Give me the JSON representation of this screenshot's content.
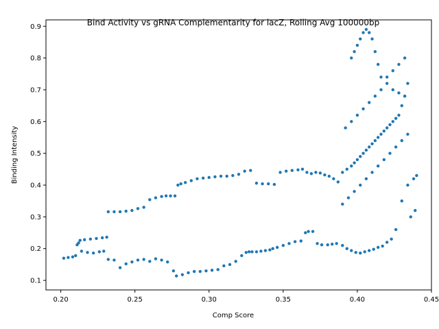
{
  "chart_data": {
    "type": "scatter",
    "title": "Bind Activity vs gRNA Complementarity for lacZ, Rolling Avg 100000bp",
    "xlabel": "Comp Score",
    "ylabel": "Binding Intensity",
    "xlim": [
      0.19,
      0.45
    ],
    "ylim": [
      0.07,
      0.92
    ],
    "xticks": [
      0.2,
      0.25,
      0.3,
      0.35,
      0.4,
      0.45
    ],
    "xtick_labels": [
      "0.20",
      "0.25",
      "0.30",
      "0.35",
      "0.40",
      "0.45"
    ],
    "yticks": [
      0.1,
      0.2,
      0.3,
      0.4,
      0.5,
      0.6,
      0.7,
      0.8,
      0.9
    ],
    "ytick_labels": [
      "0.1",
      "0.2",
      "0.3",
      "0.4",
      "0.5",
      "0.6",
      "0.7",
      "0.8",
      "0.9"
    ],
    "grid": false,
    "color": "#1f77b4",
    "series": [
      {
        "x": [
          0.202,
          0.205,
          0.208,
          0.21,
          0.211,
          0.212,
          0.213,
          0.216,
          0.22,
          0.224,
          0.228,
          0.231,
          0.214,
          0.218,
          0.222,
          0.226,
          0.229,
          0.232,
          0.236,
          0.24,
          0.244,
          0.248,
          0.252,
          0.256,
          0.26,
          0.264,
          0.268,
          0.272,
          0.276,
          0.278,
          0.282,
          0.286,
          0.29,
          0.294,
          0.298,
          0.302,
          0.306,
          0.31,
          0.314,
          0.318,
          0.322,
          0.325,
          0.327,
          0.329,
          0.332,
          0.335,
          0.338,
          0.341,
          0.343,
          0.346,
          0.35,
          0.354,
          0.358,
          0.362,
          0.365,
          0.367,
          0.37,
          0.373,
          0.376,
          0.38,
          0.383,
          0.386,
          0.39,
          0.393,
          0.396,
          0.399,
          0.402,
          0.405,
          0.408,
          0.411,
          0.414,
          0.417,
          0.42,
          0.423,
          0.426,
          0.43,
          0.434,
          0.438,
          0.44,
          0.232,
          0.236,
          0.24,
          0.244,
          0.248,
          0.252,
          0.256,
          0.26,
          0.264,
          0.268,
          0.271,
          0.274,
          0.277,
          0.279,
          0.281,
          0.284,
          0.288,
          0.292,
          0.296,
          0.3,
          0.304,
          0.308,
          0.312,
          0.316,
          0.32,
          0.324,
          0.328,
          0.332,
          0.336,
          0.34,
          0.344,
          0.348,
          0.352,
          0.356,
          0.36,
          0.363,
          0.366,
          0.369,
          0.372,
          0.375,
          0.378,
          0.381,
          0.384,
          0.387,
          0.39,
          0.393,
          0.396,
          0.398,
          0.4,
          0.402,
          0.404,
          0.406,
          0.408,
          0.41,
          0.412,
          0.414,
          0.416,
          0.418,
          0.42,
          0.422,
          0.424,
          0.426,
          0.428,
          0.43,
          0.432,
          0.434,
          0.396,
          0.398,
          0.4,
          0.402,
          0.404,
          0.406,
          0.408,
          0.41,
          0.412,
          0.414,
          0.416,
          0.42,
          0.424,
          0.428,
          0.432,
          0.436,
          0.439,
          0.39,
          0.394,
          0.398,
          0.402,
          0.406,
          0.41,
          0.414,
          0.418,
          0.422,
          0.426,
          0.43,
          0.434,
          0.392,
          0.396,
          0.4,
          0.404,
          0.408,
          0.412,
          0.416,
          0.42,
          0.424,
          0.428,
          0.432
        ],
        "y": [
          0.17,
          0.172,
          0.174,
          0.178,
          0.212,
          0.218,
          0.226,
          0.228,
          0.23,
          0.232,
          0.234,
          0.236,
          0.192,
          0.188,
          0.186,
          0.19,
          0.192,
          0.166,
          0.164,
          0.14,
          0.152,
          0.158,
          0.164,
          0.166,
          0.16,
          0.168,
          0.164,
          0.158,
          0.13,
          0.114,
          0.118,
          0.124,
          0.128,
          0.128,
          0.13,
          0.132,
          0.134,
          0.146,
          0.15,
          0.16,
          0.178,
          0.188,
          0.19,
          0.19,
          0.19,
          0.192,
          0.194,
          0.196,
          0.2,
          0.204,
          0.21,
          0.216,
          0.222,
          0.224,
          0.25,
          0.254,
          0.254,
          0.216,
          0.212,
          0.212,
          0.214,
          0.216,
          0.21,
          0.2,
          0.194,
          0.188,
          0.186,
          0.19,
          0.194,
          0.198,
          0.204,
          0.208,
          0.22,
          0.23,
          0.26,
          0.35,
          0.4,
          0.42,
          0.43,
          0.316,
          0.316,
          0.316,
          0.318,
          0.32,
          0.326,
          0.33,
          0.354,
          0.36,
          0.364,
          0.366,
          0.366,
          0.366,
          0.4,
          0.404,
          0.408,
          0.414,
          0.42,
          0.422,
          0.424,
          0.426,
          0.428,
          0.428,
          0.43,
          0.434,
          0.444,
          0.446,
          0.406,
          0.404,
          0.404,
          0.402,
          0.44,
          0.444,
          0.446,
          0.448,
          0.45,
          0.44,
          0.436,
          0.44,
          0.438,
          0.432,
          0.428,
          0.42,
          0.41,
          0.44,
          0.45,
          0.46,
          0.47,
          0.48,
          0.49,
          0.5,
          0.51,
          0.52,
          0.53,
          0.54,
          0.55,
          0.56,
          0.57,
          0.58,
          0.59,
          0.6,
          0.61,
          0.62,
          0.65,
          0.68,
          0.72,
          0.8,
          0.82,
          0.84,
          0.86,
          0.88,
          0.89,
          0.88,
          0.86,
          0.82,
          0.78,
          0.74,
          0.72,
          0.7,
          0.69,
          0.68,
          0.3,
          0.32,
          0.34,
          0.36,
          0.38,
          0.4,
          0.42,
          0.44,
          0.46,
          0.48,
          0.5,
          0.52,
          0.54,
          0.56,
          0.58,
          0.6,
          0.62,
          0.64,
          0.66,
          0.68,
          0.7,
          0.74,
          0.76,
          0.78,
          0.8
        ]
      }
    ]
  }
}
